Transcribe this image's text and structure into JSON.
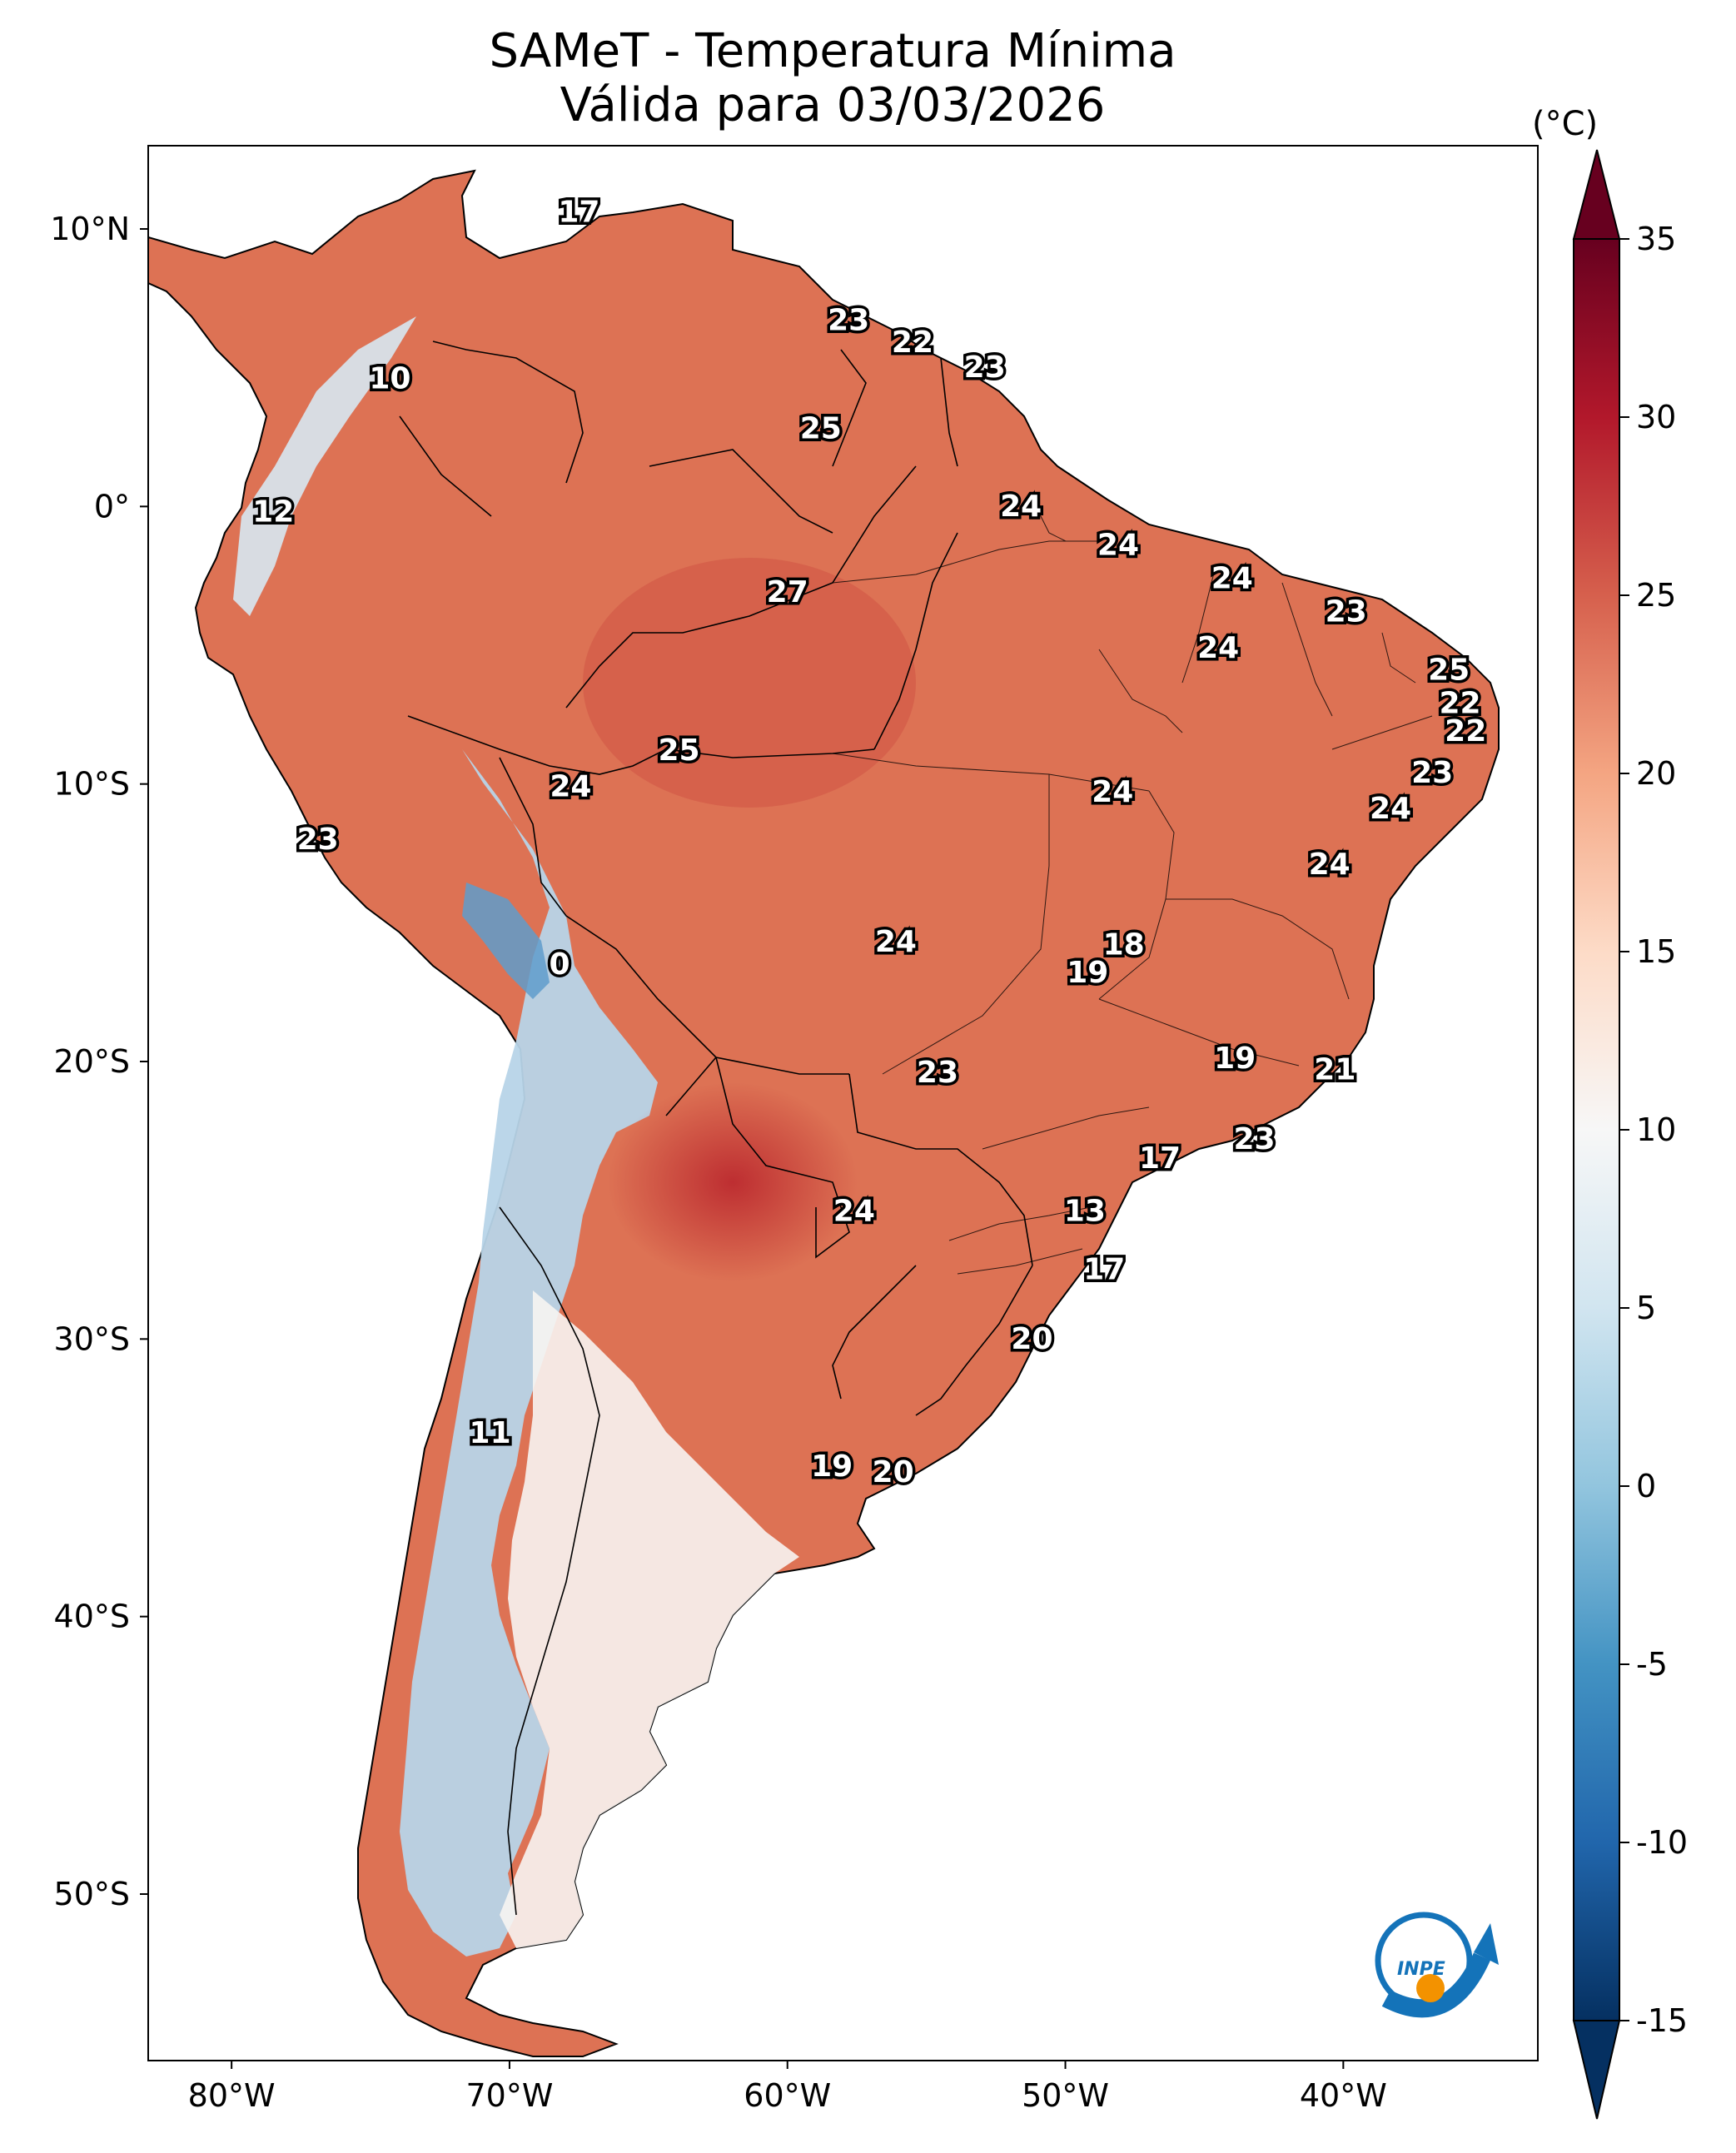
{
  "title": {
    "line1": "SAMeT - Temperatura Mínima",
    "line2": "Válida para 03/03/2026"
  },
  "map": {
    "lon_range": [
      -83,
      -33
    ],
    "lat_range": [
      -56,
      13
    ],
    "lat_ticks": [
      {
        "value": 10,
        "label": "10°N"
      },
      {
        "value": 0,
        "label": "0°"
      },
      {
        "value": -10,
        "label": "10°S"
      },
      {
        "value": -20,
        "label": "20°S"
      },
      {
        "value": -30,
        "label": "30°S"
      },
      {
        "value": -40,
        "label": "40°S"
      },
      {
        "value": -50,
        "label": "50°S"
      }
    ],
    "lon_ticks": [
      {
        "value": -80,
        "label": "80°W"
      },
      {
        "value": -70,
        "label": "70°W"
      },
      {
        "value": -60,
        "label": "60°W"
      },
      {
        "value": -50,
        "label": "50°W"
      },
      {
        "value": -40,
        "label": "40°W"
      }
    ],
    "station_labels": [
      {
        "lon": -67.5,
        "lat": 10.6,
        "text": "17"
      },
      {
        "lon": -57.8,
        "lat": 6.7,
        "text": "23"
      },
      {
        "lon": -55.5,
        "lat": 5.9,
        "text": "22"
      },
      {
        "lon": -52.9,
        "lat": 5.0,
        "text": "23"
      },
      {
        "lon": -74.3,
        "lat": 4.6,
        "text": "10"
      },
      {
        "lon": -58.8,
        "lat": 2.8,
        "text": "25"
      },
      {
        "lon": -51.6,
        "lat": 0.0,
        "text": "24"
      },
      {
        "lon": -78.5,
        "lat": -0.2,
        "text": "12"
      },
      {
        "lon": -48.1,
        "lat": -1.4,
        "text": "24"
      },
      {
        "lon": -44.0,
        "lat": -2.6,
        "text": "24"
      },
      {
        "lon": -60.0,
        "lat": -3.1,
        "text": "27"
      },
      {
        "lon": -39.9,
        "lat": -3.8,
        "text": "23"
      },
      {
        "lon": -44.5,
        "lat": -5.1,
        "text": "24"
      },
      {
        "lon": -36.2,
        "lat": -5.9,
        "text": "25"
      },
      {
        "lon": -35.8,
        "lat": -7.1,
        "text": "22"
      },
      {
        "lon": -35.6,
        "lat": -8.1,
        "text": "22"
      },
      {
        "lon": -63.9,
        "lat": -8.8,
        "text": "25"
      },
      {
        "lon": -36.8,
        "lat": -9.6,
        "text": "23"
      },
      {
        "lon": -48.3,
        "lat": -10.3,
        "text": "24"
      },
      {
        "lon": -67.8,
        "lat": -10.1,
        "text": "24"
      },
      {
        "lon": -38.3,
        "lat": -10.9,
        "text": "24"
      },
      {
        "lon": -76.9,
        "lat": -12.0,
        "text": "23"
      },
      {
        "lon": -40.5,
        "lat": -12.9,
        "text": "24"
      },
      {
        "lon": -56.1,
        "lat": -15.7,
        "text": "24"
      },
      {
        "lon": -47.9,
        "lat": -15.8,
        "text": "18"
      },
      {
        "lon": -49.2,
        "lat": -16.8,
        "text": "19"
      },
      {
        "lon": -68.2,
        "lat": -16.5,
        "text": "0"
      },
      {
        "lon": -43.9,
        "lat": -19.9,
        "text": "19"
      },
      {
        "lon": -40.3,
        "lat": -20.3,
        "text": "21"
      },
      {
        "lon": -54.6,
        "lat": -20.4,
        "text": "23"
      },
      {
        "lon": -43.2,
        "lat": -22.8,
        "text": "23"
      },
      {
        "lon": -46.6,
        "lat": -23.5,
        "text": "17"
      },
      {
        "lon": -57.6,
        "lat": -25.4,
        "text": "24"
      },
      {
        "lon": -49.3,
        "lat": -25.4,
        "text": "13"
      },
      {
        "lon": -48.6,
        "lat": -27.5,
        "text": "17"
      },
      {
        "lon": -51.2,
        "lat": -30.0,
        "text": "20"
      },
      {
        "lon": -70.7,
        "lat": -33.4,
        "text": "11"
      },
      {
        "lon": -58.4,
        "lat": -34.6,
        "text": "19"
      },
      {
        "lon": -56.2,
        "lat": -34.8,
        "text": "20"
      }
    ]
  },
  "colorbar": {
    "unit": "(°C)",
    "range": [
      -15,
      35
    ],
    "ticks": [
      "35",
      "30",
      "25",
      "20",
      "15",
      "10",
      "5",
      "0",
      "-5",
      "-10",
      "-15"
    ],
    "tick_values": [
      35,
      30,
      25,
      20,
      15,
      10,
      5,
      0,
      -5,
      -10,
      -15
    ],
    "stops": [
      "#053061",
      "#2166ac",
      "#4393c3",
      "#92c5de",
      "#d1e5f0",
      "#f7f7f7",
      "#fddbc7",
      "#f4a582",
      "#d6604d",
      "#b2182b",
      "#67001f"
    ]
  },
  "logo": {
    "text": "INPE",
    "colors": {
      "blue": "#1473b9",
      "orange": "#f39200"
    }
  }
}
